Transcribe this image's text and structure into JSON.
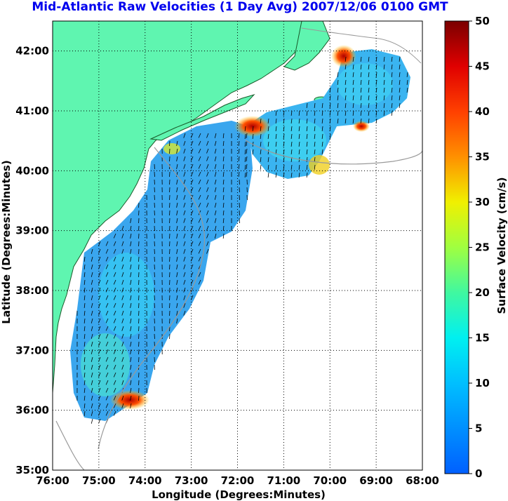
{
  "title": "Mid-Atlantic Raw Velocities (1 Day Avg) 2007/12/06 0100 GMT",
  "map": {
    "xlabel": "Longitude (Degrees:Minutes)",
    "ylabel": "Latitude (Degrees:Minutes)",
    "lon_ticks": [
      -76,
      -75,
      -74,
      -73,
      -72,
      -71,
      -70,
      -69,
      -68
    ],
    "lon_tick_labels": [
      "76:00",
      "75:00",
      "74:00",
      "73:00",
      "72:00",
      "71:00",
      "70:00",
      "69:00",
      "68:00"
    ],
    "lat_ticks": [
      35,
      36,
      37,
      38,
      39,
      40,
      41,
      42
    ],
    "lat_tick_labels": [
      "35:00",
      "36:00",
      "37:00",
      "38:00",
      "39:00",
      "40:00",
      "41:00",
      "42:00"
    ],
    "lon_range": [
      -76,
      -68
    ],
    "lat_range": [
      35,
      42.5
    ],
    "grid": "dotted",
    "land_color": "#5ff5b0",
    "bathymetry_color": "#999999"
  },
  "colorbar": {
    "label": "Surface Velocity (cm/s)",
    "ticks": [
      0,
      5,
      10,
      15,
      20,
      25,
      30,
      35,
      40,
      45,
      50
    ],
    "tick_labels": [
      "0",
      "5",
      "10",
      "15",
      "20",
      "25",
      "30",
      "35",
      "40",
      "45",
      "50"
    ],
    "range": [
      0,
      50
    ],
    "colormap": "jet"
  }
}
